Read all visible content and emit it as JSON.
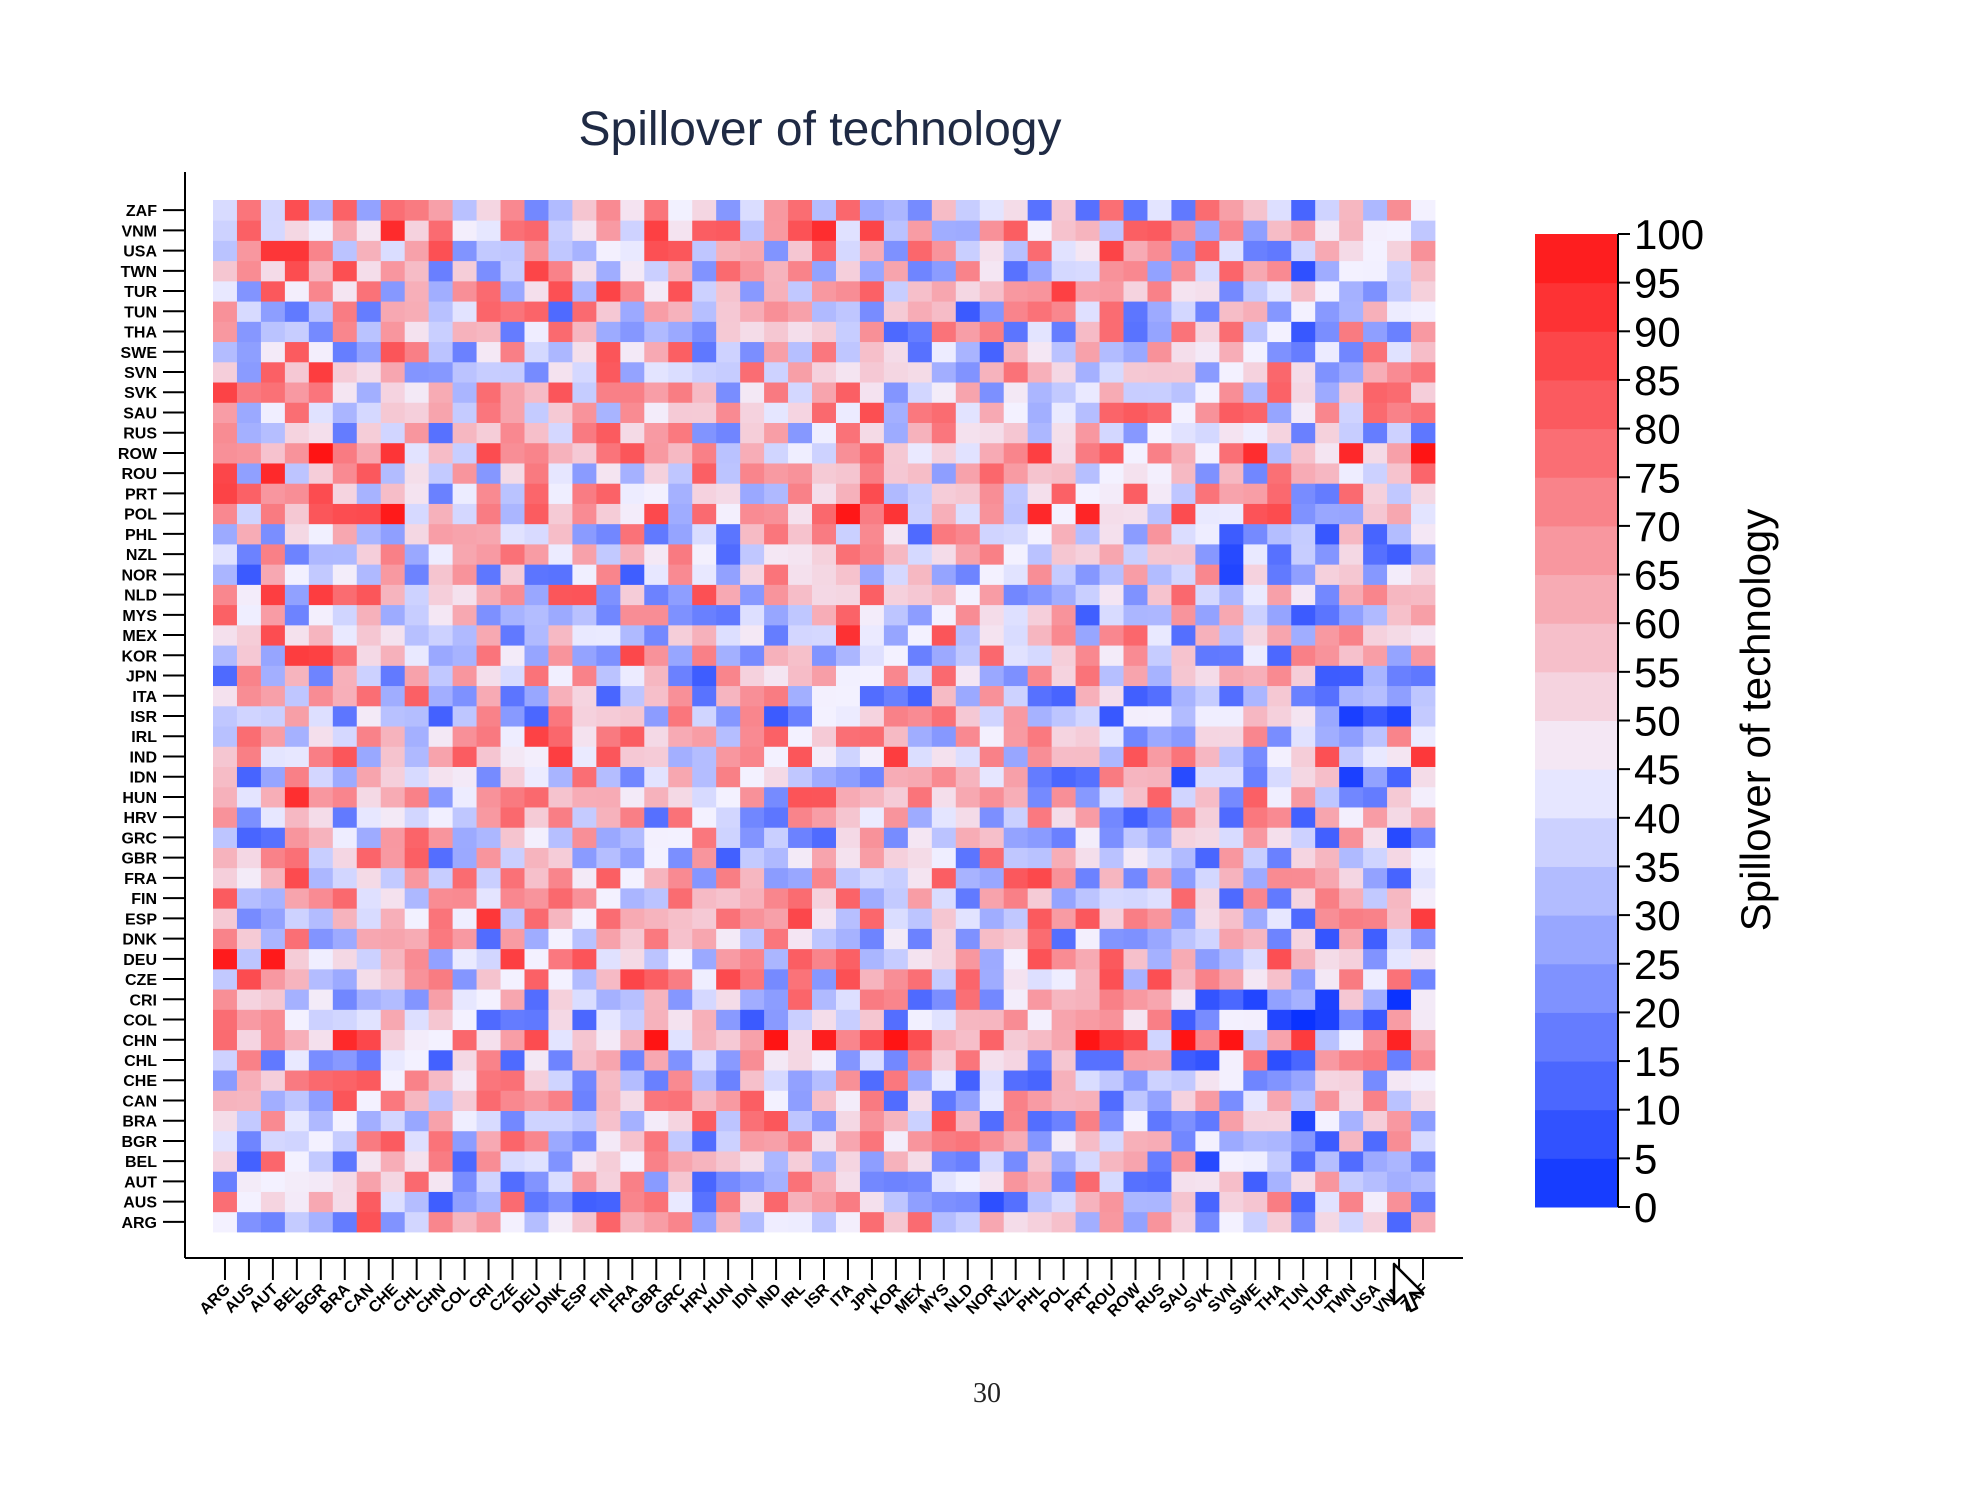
{
  "chart_data": {
    "type": "heatmap",
    "title": "Spillover of technology",
    "colorbar_label": "Spillover of technology",
    "colorbar_ticks": [
      0,
      5,
      10,
      15,
      20,
      25,
      30,
      35,
      40,
      45,
      50,
      55,
      60,
      65,
      70,
      75,
      80,
      85,
      90,
      95,
      100
    ],
    "value_range": [
      0,
      100
    ],
    "colormap": {
      "low": "#0a32ff",
      "mid": "#f3f1ff",
      "high": "#ff1414"
    },
    "x_labels": [
      "ARG",
      "AUS",
      "AUT",
      "BEL",
      "BGR",
      "BRA",
      "CAN",
      "CHE",
      "CHL",
      "CHN",
      "COL",
      "CRI",
      "CZE",
      "DEU",
      "DNK",
      "ESP",
      "FIN",
      "FRA",
      "GBR",
      "GRC",
      "HRV",
      "HUN",
      "IDN",
      "IND",
      "IRL",
      "ISR",
      "ITA",
      "JPN",
      "KOR",
      "MEX",
      "MYS",
      "NLD",
      "NOR",
      "NZL",
      "PHL",
      "POL",
      "PRT",
      "ROU",
      "ROW",
      "RUS",
      "SAU",
      "SVK",
      "SVN",
      "SWE",
      "THA",
      "TUN",
      "TUR",
      "TWN",
      "USA",
      "VNM",
      "ZAF"
    ],
    "y_labels_bottom_to_top": [
      "ARG",
      "AUS",
      "AUT",
      "BEL",
      "BGR",
      "BRA",
      "CAN",
      "CHE",
      "CHL",
      "CHN",
      "COL",
      "CRI",
      "CZE",
      "DEU",
      "DNK",
      "ESP",
      "FIN",
      "FRA",
      "GBR",
      "GRC",
      "HRV",
      "HUN",
      "IDN",
      "IND",
      "IRL",
      "ISR",
      "ITA",
      "JPN",
      "KOR",
      "MEX",
      "MYS",
      "NLD",
      "NOR",
      "NZL",
      "PHL",
      "POL",
      "PRT",
      "ROU",
      "ROW",
      "RUS",
      "SAU",
      "SVK",
      "SVN",
      "SWE",
      "THA",
      "TUN",
      "TUR",
      "TWN",
      "USA",
      "VNM",
      "ZAF"
    ],
    "row_levels_bottom_to_top": [
      44,
      40,
      42,
      40,
      44,
      50,
      46,
      40,
      43,
      90,
      34,
      38,
      58,
      68,
      44,
      60,
      48,
      58,
      44,
      38,
      44,
      56,
      38,
      64,
      60,
      38,
      42,
      40,
      54,
      52,
      38,
      54,
      36,
      38,
      42,
      72,
      52,
      58,
      82,
      46,
      60,
      58,
      56,
      48,
      50,
      40,
      58,
      52,
      60,
      70,
      50
    ],
    "col_levels_left_to_right": [
      58,
      46,
      62,
      62,
      58,
      54,
      60,
      56,
      58,
      40,
      44,
      52,
      50,
      54,
      50,
      52,
      50,
      52,
      50,
      48,
      46,
      46,
      48,
      50,
      56,
      54,
      70,
      52,
      44,
      46,
      50,
      50,
      44,
      46,
      46,
      50,
      48,
      48,
      46,
      50,
      44,
      40,
      42,
      40,
      40,
      22,
      36,
      38,
      38,
      30,
      50
    ]
  },
  "page": {
    "number": "30"
  }
}
